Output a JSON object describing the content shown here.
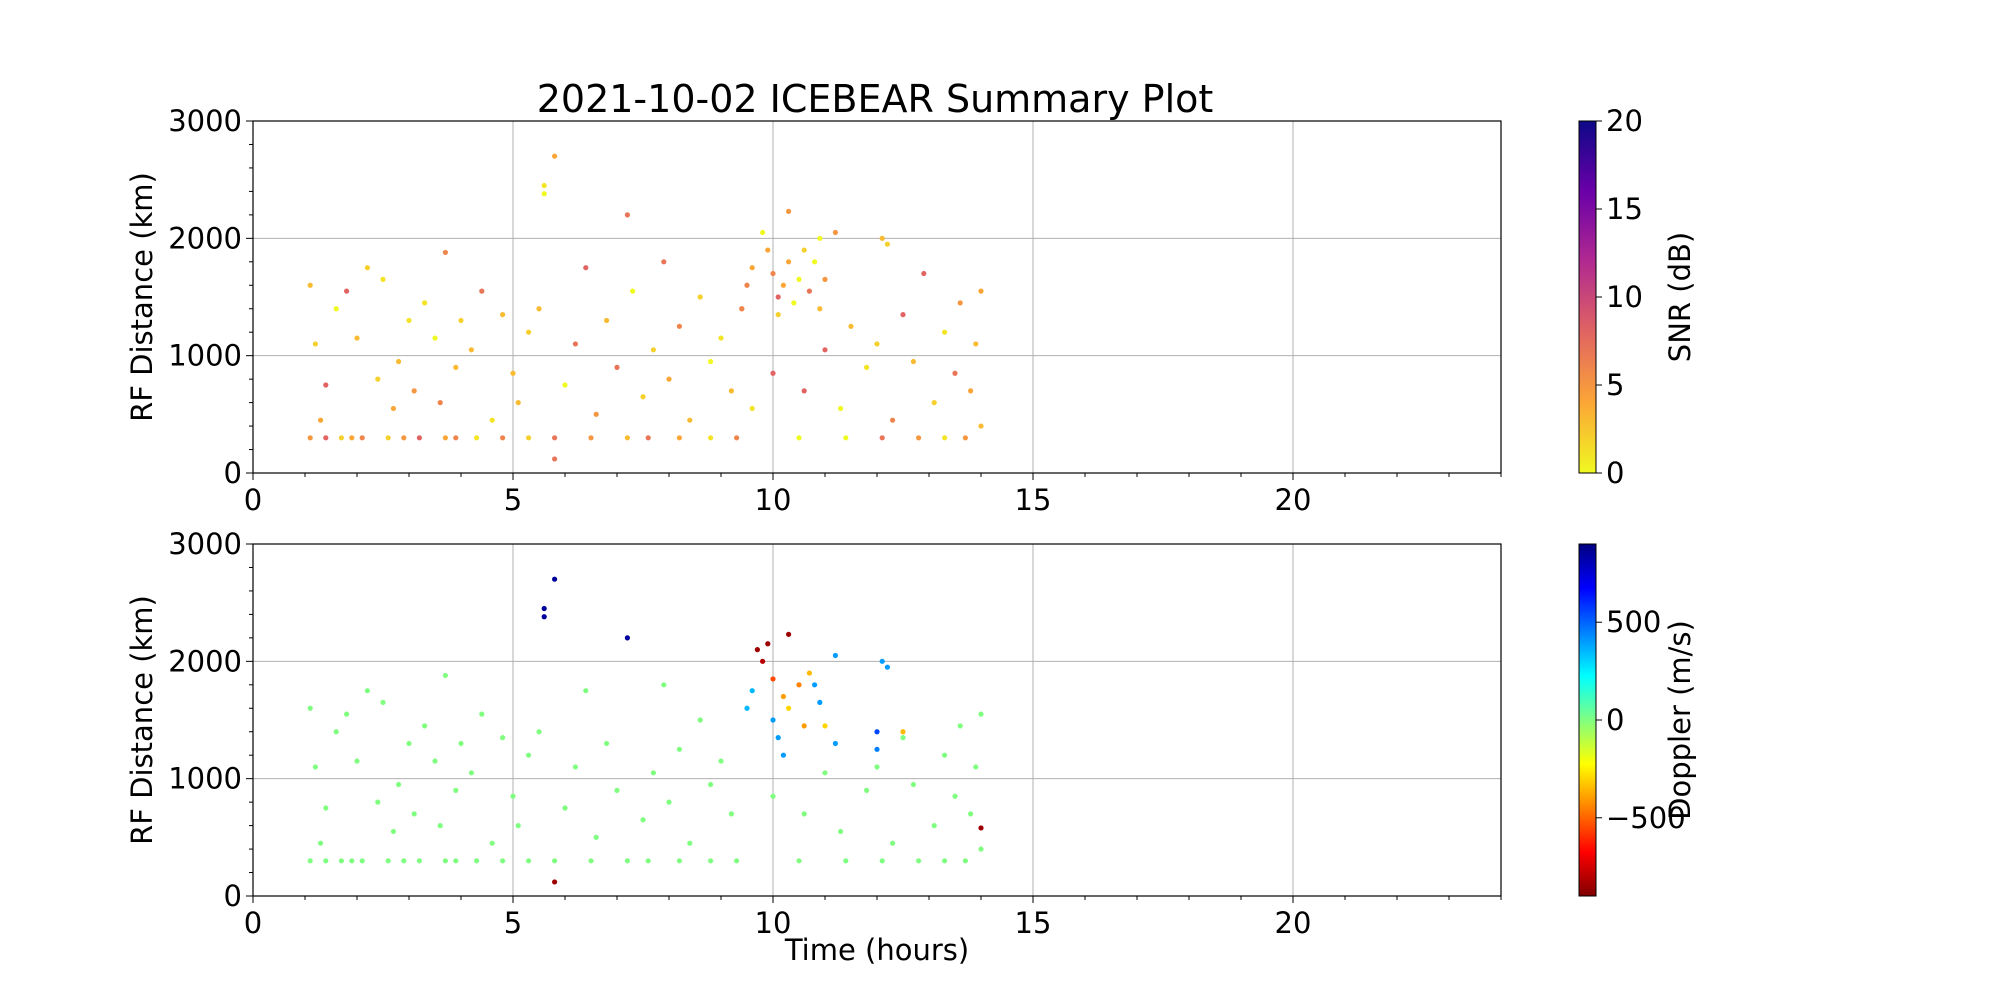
{
  "chart_data": [
    {
      "type": "scatter",
      "title": "2021-10-02 ICEBEAR Summary Plot",
      "xlabel": "",
      "ylabel": "RF Distance (km)",
      "xlim": [
        0,
        24
      ],
      "ylim": [
        0,
        3000
      ],
      "xticks": [
        0,
        5,
        10,
        15,
        20
      ],
      "yticks": [
        0,
        1000,
        2000,
        3000
      ],
      "grid": true,
      "colorbar": {
        "label": "SNR (dB)",
        "range": [
          0,
          20
        ],
        "ticks": [
          0,
          5,
          10,
          15,
          20
        ],
        "colormap": "plasma_r",
        "colors": [
          "#f0f921",
          "#fca636",
          "#e16462",
          "#b12a90",
          "#6a00a8",
          "#0d0887"
        ]
      },
      "series": [
        {
          "points": [
            [
              1.1,
              300
            ],
            [
              1.4,
              300
            ],
            [
              1.7,
              300
            ],
            [
              1.9,
              300
            ],
            [
              2.1,
              300
            ],
            [
              2.6,
              300
            ],
            [
              2.9,
              300
            ],
            [
              3.2,
              300
            ],
            [
              3.7,
              300
            ],
            [
              3.9,
              300
            ],
            [
              4.3,
              300
            ],
            [
              4.8,
              300
            ],
            [
              5.3,
              300
            ],
            [
              5.8,
              300
            ],
            [
              6.5,
              300
            ],
            [
              7.2,
              300
            ],
            [
              7.6,
              300
            ],
            [
              8.2,
              300
            ],
            [
              8.8,
              300
            ],
            [
              9.3,
              300
            ],
            [
              10.5,
              300
            ],
            [
              11.4,
              300
            ],
            [
              12.1,
              300
            ],
            [
              12.8,
              300
            ],
            [
              13.3,
              300
            ],
            [
              13.7,
              300
            ],
            [
              1.1,
              1600
            ],
            [
              1.2,
              1100
            ],
            [
              1.3,
              450
            ],
            [
              1.4,
              750
            ],
            [
              1.6,
              1400
            ],
            [
              1.8,
              1550
            ],
            [
              2.0,
              1150
            ],
            [
              2.2,
              1750
            ],
            [
              2.4,
              800
            ],
            [
              2.5,
              1650
            ],
            [
              2.7,
              550
            ],
            [
              2.8,
              950
            ],
            [
              3.0,
              1300
            ],
            [
              3.1,
              700
            ],
            [
              3.3,
              1450
            ],
            [
              3.5,
              1150
            ],
            [
              3.6,
              600
            ],
            [
              3.7,
              1880
            ],
            [
              3.9,
              900
            ],
            [
              4.0,
              1300
            ],
            [
              4.2,
              1050
            ],
            [
              4.4,
              1550
            ],
            [
              4.6,
              450
            ],
            [
              4.8,
              1350
            ],
            [
              5.0,
              850
            ],
            [
              5.1,
              600
            ],
            [
              5.3,
              1200
            ],
            [
              5.5,
              1400
            ],
            [
              5.6,
              2450
            ],
            [
              5.6,
              2380
            ],
            [
              5.8,
              2700
            ],
            [
              5.8,
              120
            ],
            [
              6.0,
              750
            ],
            [
              6.2,
              1100
            ],
            [
              6.4,
              1750
            ],
            [
              6.6,
              500
            ],
            [
              6.8,
              1300
            ],
            [
              7.0,
              900
            ],
            [
              7.2,
              2200
            ],
            [
              7.3,
              1550
            ],
            [
              7.5,
              650
            ],
            [
              7.7,
              1050
            ],
            [
              7.9,
              1800
            ],
            [
              8.0,
              800
            ],
            [
              8.2,
              1250
            ],
            [
              8.4,
              450
            ],
            [
              8.6,
              1500
            ],
            [
              8.8,
              950
            ],
            [
              9.0,
              1150
            ],
            [
              9.2,
              700
            ],
            [
              9.4,
              1400
            ],
            [
              9.6,
              550
            ],
            [
              10.0,
              850
            ],
            [
              10.3,
              2230
            ],
            [
              10.6,
              700
            ],
            [
              11.0,
              1050
            ],
            [
              11.3,
              550
            ],
            [
              11.5,
              1250
            ],
            [
              11.8,
              900
            ],
            [
              12.0,
              1100
            ],
            [
              12.3,
              450
            ],
            [
              12.5,
              1350
            ],
            [
              12.7,
              950
            ],
            [
              12.9,
              1700
            ],
            [
              13.1,
              600
            ],
            [
              13.3,
              1200
            ],
            [
              13.5,
              850
            ],
            [
              13.6,
              1450
            ],
            [
              13.8,
              700
            ],
            [
              13.9,
              1100
            ],
            [
              14.0,
              1550
            ],
            [
              14.0,
              400
            ],
            [
              9.4,
              1400
            ],
            [
              9.5,
              1600
            ],
            [
              9.6,
              1750
            ],
            [
              9.8,
              2050
            ],
            [
              9.9,
              1900
            ],
            [
              10.0,
              1700
            ],
            [
              10.1,
              1500
            ],
            [
              10.1,
              1350
            ],
            [
              10.2,
              1600
            ],
            [
              10.3,
              1800
            ],
            [
              10.4,
              1450
            ],
            [
              10.5,
              1650
            ],
            [
              10.6,
              1900
            ],
            [
              10.7,
              1550
            ],
            [
              10.8,
              1800
            ],
            [
              10.9,
              2000
            ],
            [
              10.9,
              1400
            ],
            [
              11.0,
              1650
            ],
            [
              11.2,
              2050
            ],
            [
              12.1,
              2000
            ],
            [
              12.2,
              1950
            ]
          ]
        }
      ]
    },
    {
      "type": "scatter",
      "title": "",
      "xlabel": "Time (hours)",
      "ylabel": "RF Distance (km)",
      "xlim": [
        0,
        24
      ],
      "ylim": [
        0,
        3000
      ],
      "xticks": [
        0,
        5,
        10,
        15,
        20
      ],
      "yticks": [
        0,
        1000,
        2000,
        3000
      ],
      "grid": true,
      "colorbar": {
        "label": "Doppler (m/s)",
        "range": [
          -900,
          900
        ],
        "ticks": [
          -500,
          0,
          500
        ],
        "tick_labels": [
          "−500",
          "0",
          "500"
        ],
        "colormap": "jet_r",
        "colors": [
          "#800000",
          "#ff0000",
          "#ff8000",
          "#ffff00",
          "#80ff80",
          "#00ffff",
          "#0080ff",
          "#0000ff",
          "#000080"
        ]
      },
      "series": [
        {
          "points": [
            [
              1.1,
              300,
              0
            ],
            [
              1.4,
              300,
              0
            ],
            [
              1.7,
              300,
              0
            ],
            [
              1.9,
              300,
              0
            ],
            [
              2.1,
              300,
              0
            ],
            [
              2.6,
              300,
              0
            ],
            [
              2.9,
              300,
              0
            ],
            [
              3.2,
              300,
              0
            ],
            [
              3.7,
              300,
              0
            ],
            [
              3.9,
              300,
              0
            ],
            [
              4.3,
              300,
              0
            ],
            [
              4.8,
              300,
              0
            ],
            [
              5.3,
              300,
              0
            ],
            [
              5.8,
              300,
              0
            ],
            [
              6.5,
              300,
              0
            ],
            [
              7.2,
              300,
              0
            ],
            [
              7.6,
              300,
              0
            ],
            [
              8.2,
              300,
              0
            ],
            [
              8.8,
              300,
              0
            ],
            [
              9.3,
              300,
              0
            ],
            [
              10.5,
              300,
              0
            ],
            [
              11.4,
              300,
              0
            ],
            [
              12.1,
              300,
              0
            ],
            [
              12.8,
              300,
              0
            ],
            [
              13.3,
              300,
              0
            ],
            [
              13.7,
              300,
              0
            ],
            [
              1.1,
              1600,
              0
            ],
            [
              1.2,
              1100,
              0
            ],
            [
              1.3,
              450,
              0
            ],
            [
              1.4,
              750,
              0
            ],
            [
              1.6,
              1400,
              0
            ],
            [
              1.8,
              1550,
              0
            ],
            [
              2.0,
              1150,
              0
            ],
            [
              2.2,
              1750,
              0
            ],
            [
              2.4,
              800,
              0
            ],
            [
              2.5,
              1650,
              0
            ],
            [
              2.7,
              550,
              0
            ],
            [
              2.8,
              950,
              0
            ],
            [
              3.0,
              1300,
              0
            ],
            [
              3.1,
              700,
              0
            ],
            [
              3.3,
              1450,
              0
            ],
            [
              3.5,
              1150,
              0
            ],
            [
              3.6,
              600,
              0
            ],
            [
              3.7,
              1880,
              0
            ],
            [
              3.9,
              900,
              0
            ],
            [
              4.0,
              1300,
              0
            ],
            [
              4.2,
              1050,
              0
            ],
            [
              4.4,
              1550,
              0
            ],
            [
              4.6,
              450,
              0
            ],
            [
              4.8,
              1350,
              0
            ],
            [
              5.0,
              850,
              0
            ],
            [
              5.1,
              600,
              0
            ],
            [
              5.3,
              1200,
              0
            ],
            [
              5.5,
              1400,
              0
            ],
            [
              6.0,
              750,
              0
            ],
            [
              6.2,
              1100,
              0
            ],
            [
              6.4,
              1750,
              0
            ],
            [
              6.6,
              500,
              0
            ],
            [
              6.8,
              1300,
              0
            ],
            [
              7.0,
              900,
              0
            ],
            [
              7.5,
              650,
              0
            ],
            [
              7.7,
              1050,
              0
            ],
            [
              7.9,
              1800,
              0
            ],
            [
              8.0,
              800,
              0
            ],
            [
              8.2,
              1250,
              0
            ],
            [
              8.4,
              450,
              0
            ],
            [
              8.6,
              1500,
              0
            ],
            [
              8.8,
              950,
              0
            ],
            [
              9.0,
              1150,
              0
            ],
            [
              9.2,
              700,
              0
            ],
            [
              10.0,
              850,
              0
            ],
            [
              10.6,
              700,
              0
            ],
            [
              11.0,
              1050,
              0
            ],
            [
              11.3,
              550,
              0
            ],
            [
              11.8,
              900,
              0
            ],
            [
              12.0,
              1100,
              0
            ],
            [
              12.3,
              450,
              0
            ],
            [
              12.5,
              1350,
              0
            ],
            [
              12.7,
              950,
              0
            ],
            [
              13.1,
              600,
              0
            ],
            [
              13.3,
              1200,
              0
            ],
            [
              13.5,
              850,
              0
            ],
            [
              13.6,
              1450,
              0
            ],
            [
              13.8,
              700,
              0
            ],
            [
              13.9,
              1100,
              0
            ],
            [
              14.0,
              1550,
              0
            ],
            [
              14.0,
              400,
              0
            ],
            [
              5.6,
              2450,
              850
            ],
            [
              5.6,
              2380,
              850
            ],
            [
              5.8,
              2700,
              850
            ],
            [
              7.2,
              2200,
              850
            ],
            [
              5.8,
              120,
              -850
            ],
            [
              14.0,
              580,
              -850
            ],
            [
              10.3,
              2230,
              -850
            ],
            [
              9.5,
              1600,
              350
            ],
            [
              9.6,
              1750,
              350
            ],
            [
              10.0,
              1500,
              400
            ],
            [
              10.1,
              1350,
              400
            ],
            [
              10.2,
              1200,
              400
            ],
            [
              10.8,
              1800,
              400
            ],
            [
              10.9,
              1650,
              400
            ],
            [
              11.2,
              2050,
              400
            ],
            [
              11.2,
              1300,
              400
            ],
            [
              12.0,
              1400,
              550
            ],
            [
              12.0,
              1250,
              450
            ],
            [
              12.1,
              2000,
              400
            ],
            [
              12.2,
              1950,
              400
            ],
            [
              9.7,
              2100,
              -850
            ],
            [
              9.8,
              2000,
              -800
            ],
            [
              9.9,
              2150,
              -850
            ],
            [
              10.0,
              1850,
              -550
            ],
            [
              10.2,
              1700,
              -400
            ],
            [
              10.3,
              1600,
              -300
            ],
            [
              10.5,
              1800,
              -450
            ],
            [
              10.6,
              1450,
              -400
            ],
            [
              10.7,
              1900,
              -350
            ],
            [
              11.0,
              1450,
              -300
            ],
            [
              12.5,
              1400,
              -350
            ]
          ]
        }
      ]
    }
  ]
}
